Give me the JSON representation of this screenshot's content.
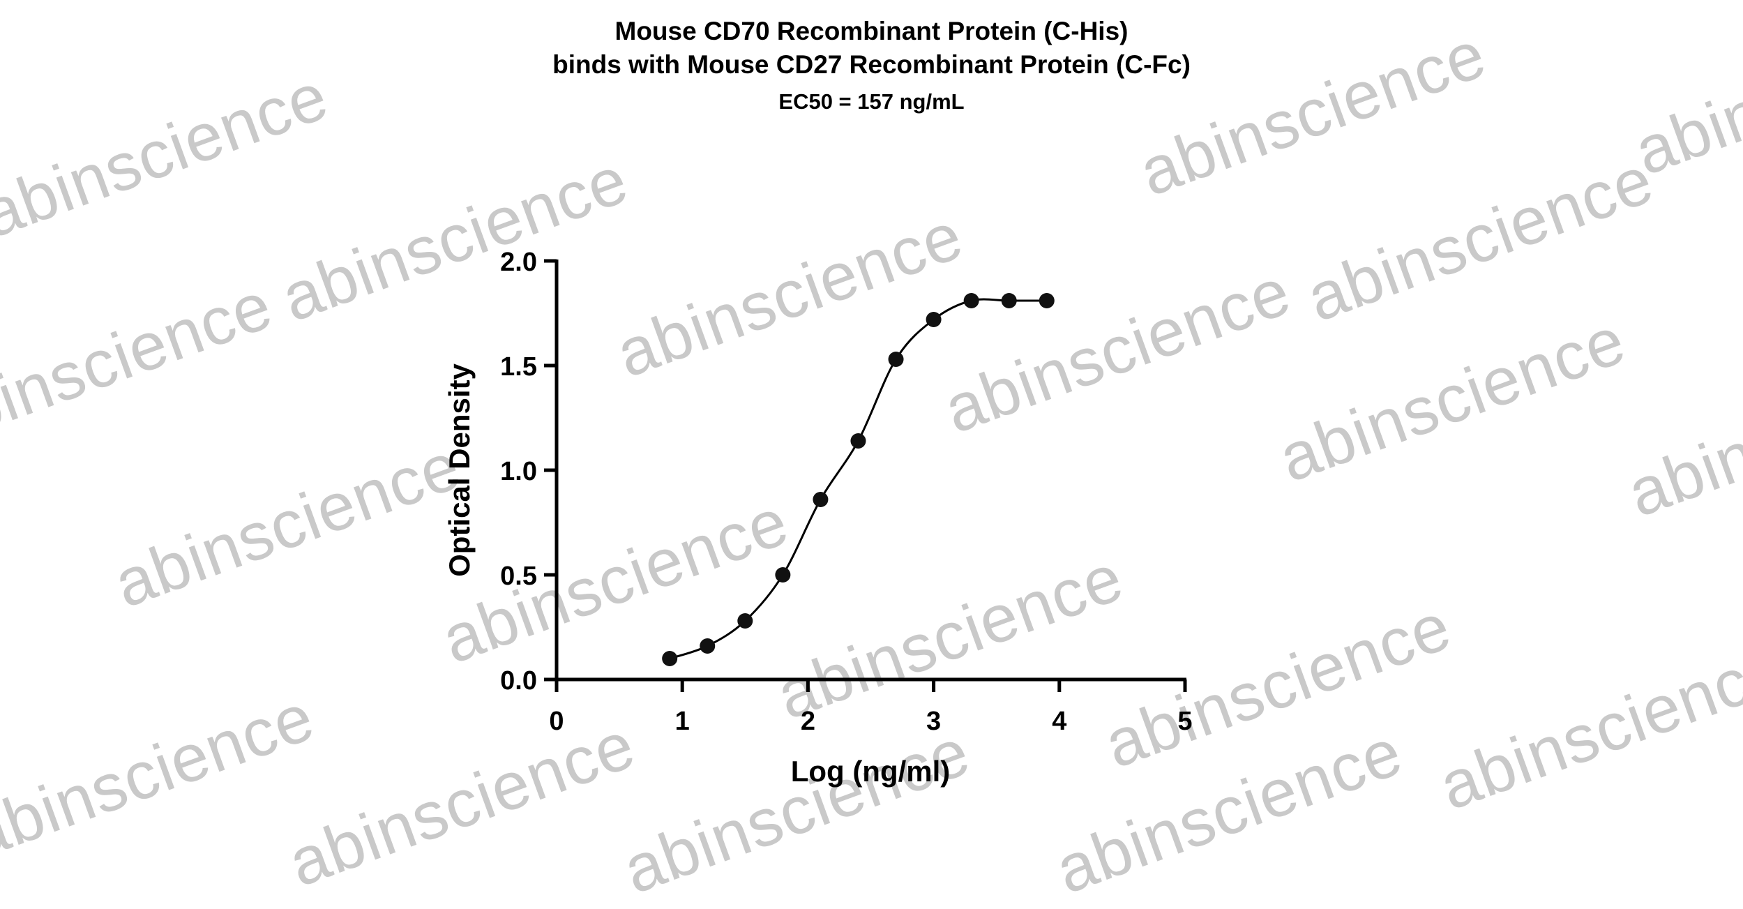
{
  "watermark_text": "abinscience",
  "chart_data": {
    "type": "scatter",
    "title": [
      "Mouse CD70 Recombinant Protein (C-His)",
      "binds with Mouse CD27 Recombinant Protein (C-Fc)"
    ],
    "subtitle": "EC50 = 157 ng/mL",
    "xlabel": "Log (ng/ml)",
    "ylabel": "Optical Density",
    "xlim": [
      0,
      5
    ],
    "ylim": [
      0,
      2.0
    ],
    "x_ticks": [
      "0",
      "1",
      "2",
      "3",
      "4",
      "5"
    ],
    "y_ticks": [
      "0.0",
      "0.5",
      "1.0",
      "1.5",
      "2.0"
    ],
    "grid": false,
    "legend": "none",
    "series": [
      {
        "x": [
          0.9,
          1.2,
          1.5,
          1.8,
          2.1,
          2.4,
          2.7,
          3.0,
          3.3,
          3.6,
          3.9
        ],
        "y": [
          0.1,
          0.16,
          0.28,
          0.5,
          0.86,
          1.14,
          1.53,
          1.72,
          1.81,
          1.81,
          1.81
        ],
        "color": "#000000",
        "fit": "4PL sigmoid curve"
      }
    ],
    "colors": {
      "points": "#111111",
      "axis": "#000000",
      "watermark": "#c9c9c9"
    }
  }
}
